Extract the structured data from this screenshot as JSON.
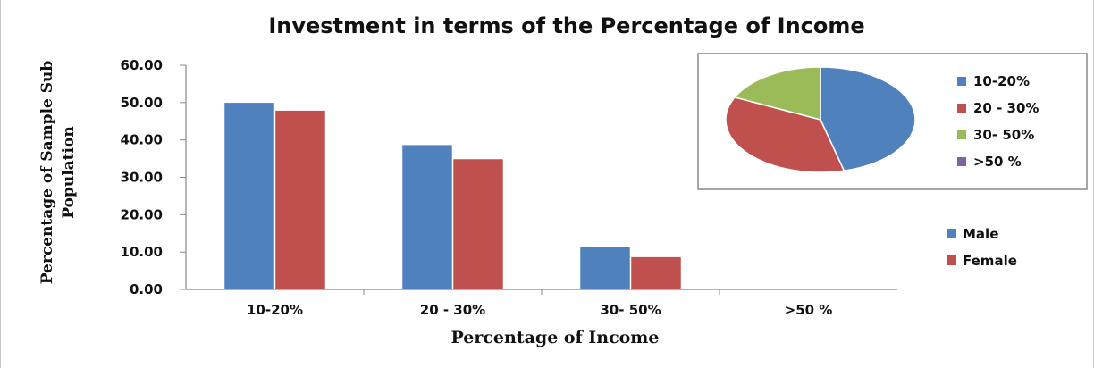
{
  "chart_data": [
    {
      "type": "bar",
      "title": "Investment in terms of the Percentage of Income",
      "xlabel": "Percentage of Income",
      "ylabel": "Percentage of Sample Sub Population",
      "categories": [
        "10-20%",
        "20 - 30%",
        "30- 50%",
        ">50 %"
      ],
      "series": [
        {
          "name": "Male",
          "values": [
            50.0,
            38.7,
            11.3,
            0
          ],
          "color": "#4F81BD"
        },
        {
          "name": "Female",
          "values": [
            47.9,
            34.9,
            8.7,
            0
          ],
          "color": "#C0504D"
        }
      ],
      "yticks": [
        "0.00",
        "10.00",
        "20.00",
        "30.00",
        "40.00",
        "50.00",
        "60.00"
      ],
      "ylim": [
        0,
        60
      ],
      "grid": false,
      "legend": "right"
    },
    {
      "type": "pie",
      "labels": [
        "10-20%",
        "20 - 30%",
        "30- 50%",
        ">50 %"
      ],
      "values": [
        46,
        36,
        18,
        0
      ],
      "colors": [
        "#4F81BD",
        "#C0504D",
        "#9BBB59",
        "#8064A2"
      ],
      "legend": "right"
    }
  ]
}
